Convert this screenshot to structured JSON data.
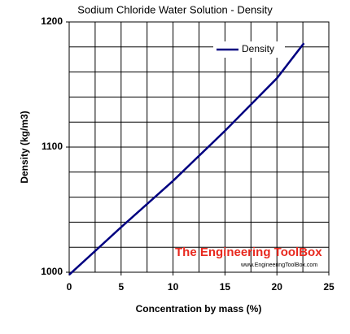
{
  "chart_data": {
    "type": "line",
    "title": "Sodium Chloride Water Solution - Density",
    "x_label": "Concentration by mass (%)",
    "y_label": "Density (kg/m3)",
    "x": [
      0,
      5,
      10,
      15,
      20,
      22.6
    ],
    "series": [
      {
        "name": "Density",
        "color": "#000080",
        "values": [
          998,
          1036,
          1073,
          1113,
          1155,
          1183
        ]
      }
    ],
    "xlim": [
      0,
      25
    ],
    "xticks": [
      0,
      5,
      10,
      15,
      20,
      25
    ],
    "ylim": [
      1000,
      1200
    ],
    "yticks": [
      1000,
      1100,
      1200
    ],
    "xgrid": [
      2.5,
      5,
      7.5,
      10,
      12.5,
      15,
      17.5,
      20,
      22.5
    ],
    "ygrid": [
      1020,
      1040,
      1060,
      1080,
      1100,
      1120,
      1140,
      1160,
      1180
    ],
    "grid": true,
    "legend": "upper right",
    "watermark": {
      "title": "The Engineering ToolBox",
      "url": "www.EngineeringToolBox.com"
    }
  }
}
